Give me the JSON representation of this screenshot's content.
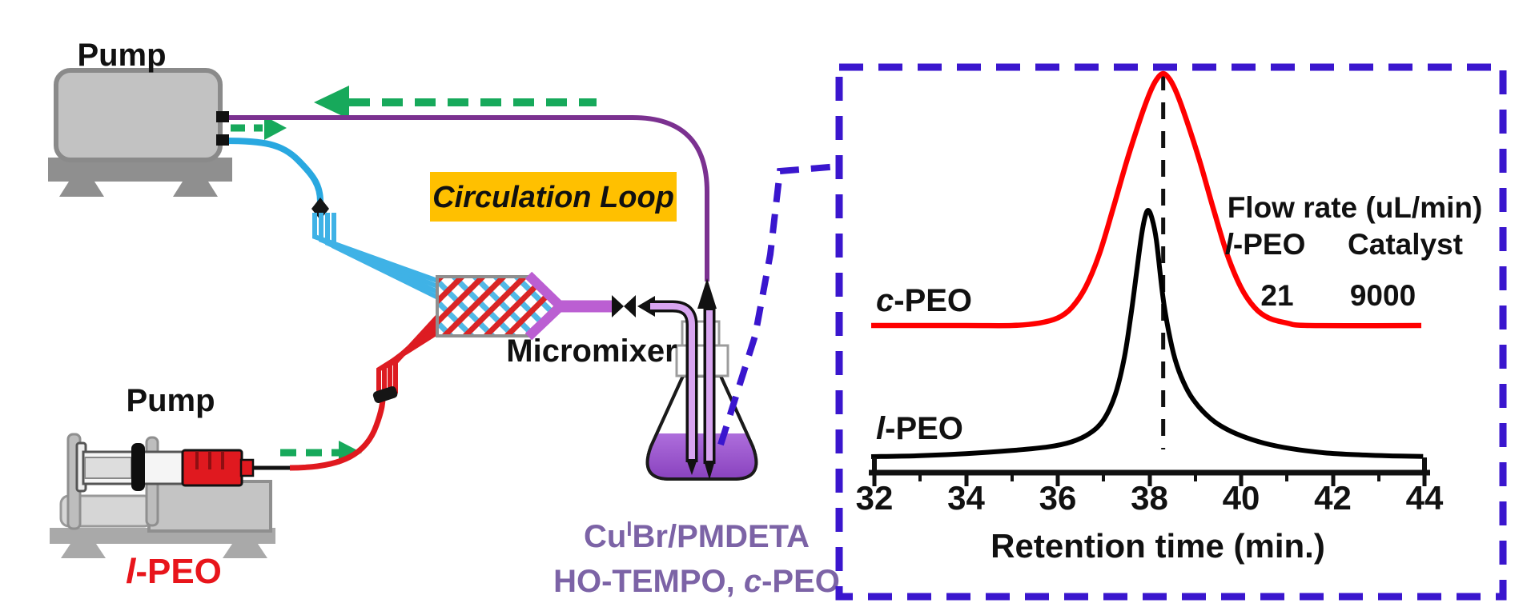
{
  "diagram": {
    "pump_top_label": "Pump",
    "pump_bottom_label": "Pump",
    "feed_label": {
      "it": "l",
      "rest": "-PEO"
    },
    "circulation_loop_label": "Circulation Loop",
    "micromixer_label": "Micromixer",
    "flask_caption_line1": {
      "p1": "Cu",
      "sup": "I",
      "p2": "Br/PMDETA"
    },
    "flask_caption_line2": {
      "p1": "HO-TEMPO, ",
      "it": "c",
      "p2": "-PEO"
    },
    "colors": {
      "tubing_blue": "#29A8E0",
      "tubing_red": "#E0191F",
      "tubing_purple": "#7B3190",
      "mixer_outlet_purple": "#BB5FD2",
      "flow_arrow_green": "#17A95B",
      "loop_label_bg": "#FFC000",
      "flask_liquid": "#9A52CC",
      "caption_purple": "#7C63A6",
      "inset_border_blue": "#3A16CE"
    }
  },
  "chart": {
    "curve_labels": {
      "c_peo": {
        "it": "c",
        "rest": "-PEO"
      },
      "l_peo": {
        "it": "l",
        "rest": "-PEO"
      }
    },
    "legend": {
      "header": "Flow rate (uL/min)",
      "col1": {
        "it": "l",
        "rest": "-PEO"
      },
      "col2": "Catalyst",
      "val1": "21",
      "val2": "9000"
    },
    "xlabel": "Retention time (min.)"
  },
  "chart_data": {
    "type": "line",
    "title": "",
    "xlabel": "Retention time (min.)",
    "ylabel": "",
    "xlim": [
      32,
      44
    ],
    "x_ticks": [
      32,
      34,
      36,
      38,
      40,
      42,
      44
    ],
    "x_tick_labels": [
      "32",
      "34",
      "36",
      "38",
      "40",
      "42",
      "44"
    ],
    "dashed_reference_line_min": 38.3,
    "legend_table": {
      "header": "Flow rate (uL/min)",
      "columns": [
        "l-PEO",
        "Catalyst"
      ],
      "values": [
        21,
        9000
      ]
    },
    "series": [
      {
        "name": "c-PEO",
        "color": "#FF0000",
        "peak_min": 38.3,
        "points": [
          [
            31.93,
            0
          ],
          [
            34,
            0
          ],
          [
            35,
            0
          ],
          [
            35.6,
            0.01
          ],
          [
            36,
            0.03
          ],
          [
            36.3,
            0.07
          ],
          [
            36.6,
            0.15
          ],
          [
            36.9,
            0.28
          ],
          [
            37.2,
            0.46
          ],
          [
            37.5,
            0.65
          ],
          [
            37.8,
            0.82
          ],
          [
            38.0,
            0.92
          ],
          [
            38.15,
            0.975
          ],
          [
            38.3,
            1
          ],
          [
            38.45,
            0.975
          ],
          [
            38.6,
            0.92
          ],
          [
            38.8,
            0.82
          ],
          [
            39.1,
            0.65
          ],
          [
            39.4,
            0.46
          ],
          [
            39.7,
            0.28
          ],
          [
            40.0,
            0.15
          ],
          [
            40.3,
            0.07
          ],
          [
            40.6,
            0.03
          ],
          [
            41.0,
            0.01
          ],
          [
            41.5,
            0
          ],
          [
            43.93,
            0
          ]
        ]
      },
      {
        "name": "l-PEO",
        "color": "#000000",
        "peak_min": 38.0,
        "points": [
          [
            31.93,
            0
          ],
          [
            33,
            0.004
          ],
          [
            34,
            0.012
          ],
          [
            35,
            0.025
          ],
          [
            35.8,
            0.04
          ],
          [
            36.3,
            0.06
          ],
          [
            36.7,
            0.095
          ],
          [
            37.0,
            0.15
          ],
          [
            37.25,
            0.25
          ],
          [
            37.45,
            0.4
          ],
          [
            37.6,
            0.58
          ],
          [
            37.72,
            0.75
          ],
          [
            37.82,
            0.89
          ],
          [
            37.9,
            0.97
          ],
          [
            37.97,
            1
          ],
          [
            38.05,
            0.97
          ],
          [
            38.15,
            0.88
          ],
          [
            38.3,
            0.64
          ],
          [
            38.45,
            0.48
          ],
          [
            38.6,
            0.37
          ],
          [
            38.8,
            0.28
          ],
          [
            39.0,
            0.22
          ],
          [
            39.3,
            0.16
          ],
          [
            39.6,
            0.12
          ],
          [
            40.0,
            0.085
          ],
          [
            40.5,
            0.055
          ],
          [
            41.1,
            0.032
          ],
          [
            41.8,
            0.016
          ],
          [
            42.5,
            0.008
          ],
          [
            43.3,
            0.003
          ],
          [
            43.97,
            0.001
          ]
        ]
      }
    ]
  }
}
